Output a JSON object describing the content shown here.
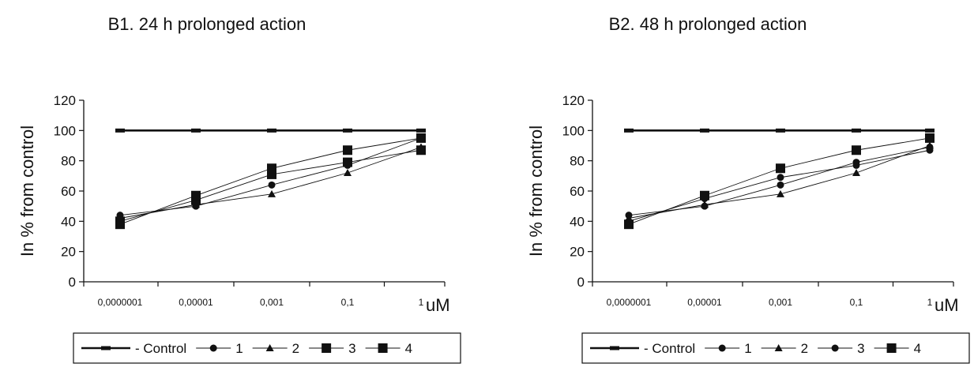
{
  "chart_data": [
    {
      "type": "line",
      "title": "B1. 24 h prolonged action",
      "xlabel": "uM",
      "ylabel": "In % from control",
      "ylim": [
        0,
        120
      ],
      "yticks": [
        "0",
        "20",
        "40",
        "60",
        "80",
        "100",
        "120"
      ],
      "categories": [
        "0,0000001",
        "0,00001",
        "0,001",
        "0,1",
        "1"
      ],
      "legend_position": "bottom",
      "grid": false,
      "series": [
        {
          "name": "- Control",
          "marker": "dash",
          "values": [
            100,
            100,
            100,
            100,
            100
          ]
        },
        {
          "name": "1",
          "marker": "circle",
          "values": [
            44,
            50,
            64,
            77,
            95
          ]
        },
        {
          "name": "2",
          "marker": "triangle",
          "values": [
            42,
            51,
            58,
            72,
            89
          ]
        },
        {
          "name": "3",
          "marker": "square",
          "values": [
            40,
            54,
            71,
            79,
            87
          ]
        },
        {
          "name": "4",
          "marker": "square",
          "values": [
            38,
            57,
            75,
            87,
            95
          ]
        }
      ]
    },
    {
      "type": "line",
      "title": "B2. 48 h prolonged action",
      "xlabel": "uM",
      "ylabel": "In % from control",
      "ylim": [
        0,
        120
      ],
      "yticks": [
        "0",
        "20",
        "40",
        "60",
        "80",
        "100",
        "120"
      ],
      "categories": [
        "0,0000001",
        "0,00001",
        "0,001",
        "0,1",
        "1"
      ],
      "legend_position": "bottom",
      "grid": false,
      "series": [
        {
          "name": "- Control",
          "marker": "dash",
          "values": [
            100,
            100,
            100,
            100,
            100
          ]
        },
        {
          "name": "1",
          "marker": "circle",
          "values": [
            44,
            50,
            64,
            79,
            89
          ]
        },
        {
          "name": "2",
          "marker": "triangle",
          "values": [
            42,
            51,
            58,
            72,
            90
          ]
        },
        {
          "name": "3",
          "marker": "circle",
          "values": [
            40,
            55,
            69,
            77,
            87
          ]
        },
        {
          "name": "4",
          "marker": "square",
          "values": [
            38,
            57,
            75,
            87,
            95
          ]
        }
      ]
    }
  ]
}
